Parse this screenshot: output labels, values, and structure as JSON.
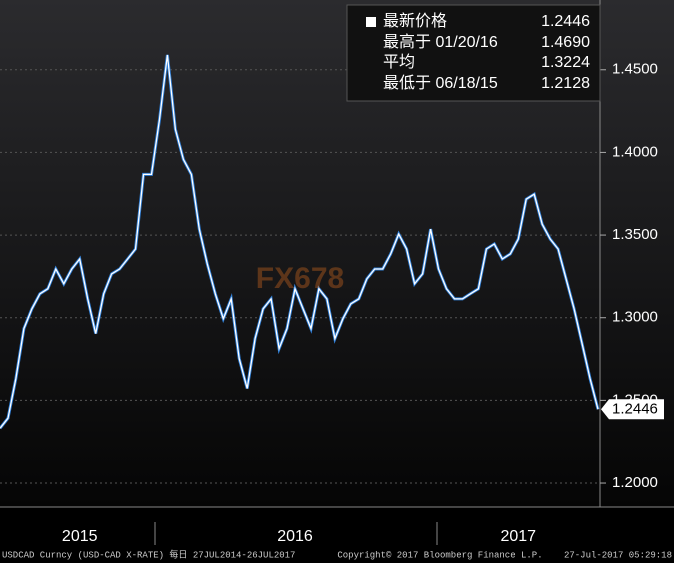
{
  "chart_data": {
    "type": "line",
    "categories": [
      null,
      null,
      null,
      null,
      null,
      null,
      null,
      null,
      null,
      null,
      "2015",
      null,
      null,
      null,
      null,
      null,
      null,
      null,
      null,
      null,
      null,
      null,
      null,
      null,
      null,
      null,
      null,
      null,
      null,
      null,
      null,
      null,
      null,
      null,
      null,
      null,
      null,
      "2016",
      null,
      null,
      null,
      null,
      null,
      null,
      null,
      null,
      null,
      null,
      null,
      null,
      null,
      null,
      null,
      null,
      null,
      null,
      null,
      null,
      null,
      null,
      null,
      null,
      null,
      null,
      null,
      "2017",
      null,
      null,
      null,
      null,
      null,
      null,
      null,
      null,
      null,
      null
    ],
    "series": [
      {
        "color": "#ffffff",
        "values": [
          1.2331,
          1.2392,
          1.2633,
          1.2934,
          1.3054,
          1.3145,
          1.3175,
          1.3295,
          1.3205,
          1.3295,
          1.3355,
          1.3114,
          1.2904,
          1.3145,
          1.3265,
          1.3295,
          1.3355,
          1.3416,
          1.3867,
          1.3867,
          1.4199,
          1.459,
          1.4139,
          1.3958,
          1.3867,
          1.3536,
          1.3325,
          1.3145,
          1.2994,
          1.3114,
          1.2753,
          1.2572,
          1.2874,
          1.3054,
          1.3114,
          1.2813,
          1.2934,
          1.3175,
          1.3054,
          1.2934,
          1.3175,
          1.3114,
          1.2874,
          1.2994,
          1.3084,
          1.3114,
          1.3235,
          1.3295,
          1.3295,
          1.3386,
          1.3506,
          1.3416,
          1.3205,
          1.3265,
          1.3536,
          1.3295,
          1.3175,
          1.3114,
          1.3114,
          1.3145,
          1.3175,
          1.3416,
          1.3446,
          1.3355,
          1.3386,
          1.3476,
          1.3717,
          1.3747,
          1.3566,
          1.3476,
          1.3416,
          1.3235,
          1.3054,
          1.2843,
          1.2633,
          1.2446
        ]
      }
    ],
    "ylim": [
      1.1855,
      1.4922
    ],
    "yticks": [
      {
        "value": 1.2,
        "label": "1.2000"
      },
      {
        "value": 1.25,
        "label": "1.2500"
      },
      {
        "value": 1.3,
        "label": "1.3000"
      },
      {
        "value": 1.35,
        "label": "1.3500"
      },
      {
        "value": 1.4,
        "label": "1.4000"
      },
      {
        "value": 1.45,
        "label": "1.4500"
      }
    ],
    "grid": true,
    "legend": [
      {
        "label": "最新价格",
        "value": "1.2446"
      },
      {
        "label": "最高于 01/20/16",
        "value": "1.4690"
      },
      {
        "label": "平均",
        "value": "1.3224"
      },
      {
        "label": "最低于 06/18/15",
        "value": "1.2128"
      }
    ],
    "watermark": "FX678",
    "footer": {
      "left": "USDCAD Curncy (USD-CAD X-RATE)  每日 27JUL2014-26JUL2017",
      "center": "Copyright© 2017 Bloomberg Finance L.P.",
      "right": "27-Jul-2017 05:29:18"
    }
  }
}
